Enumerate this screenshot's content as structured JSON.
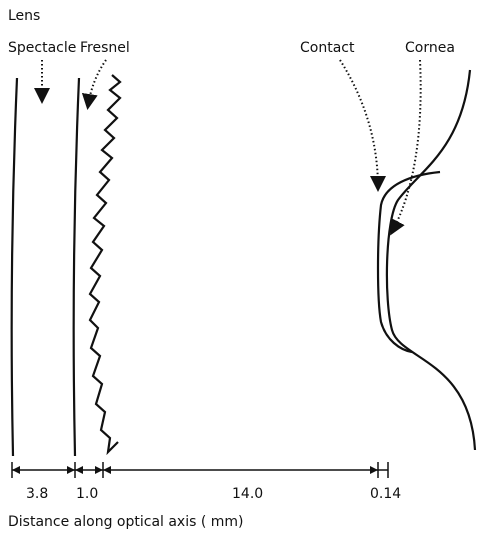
{
  "header": "Lens",
  "labels": [
    "Spectacle",
    "Fresnel",
    "Contact",
    "Cornea"
  ],
  "dimensions": [
    "3.8",
    "1.0",
    "14.0",
    "0.14"
  ],
  "axis_label": "Distance along optical axis ( mm)"
}
